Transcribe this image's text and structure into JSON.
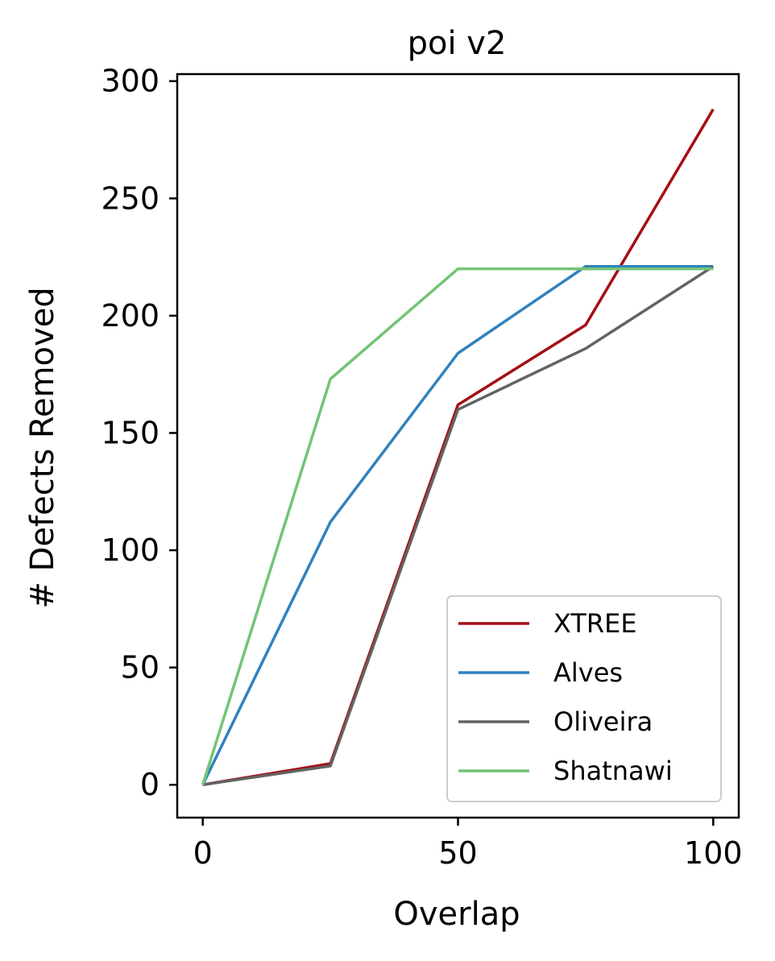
{
  "chart_data": {
    "type": "line",
    "title": "poi v2",
    "xlabel": "Overlap",
    "ylabel": "# Defects Removed",
    "x": [
      0,
      25,
      50,
      75,
      100
    ],
    "xlim": [
      -5,
      105
    ],
    "ylim": [
      -14,
      303
    ],
    "xticks": [
      0,
      50,
      100
    ],
    "yticks": [
      0,
      50,
      100,
      150,
      200,
      250,
      300
    ],
    "xtick_labels": [
      "0",
      "50",
      "100"
    ],
    "ytick_labels": [
      "0",
      "50",
      "100",
      "150",
      "200",
      "250",
      "300"
    ],
    "grid": false,
    "legend_position": "lower-right",
    "series": [
      {
        "name": "XTREE",
        "color": "#a50f15",
        "values": [
          0,
          9,
          162,
          196,
          288
        ]
      },
      {
        "name": "Alves",
        "color": "#3182bd",
        "values": [
          0,
          112,
          184,
          221,
          221
        ]
      },
      {
        "name": "Oliveira",
        "color": "#636363",
        "values": [
          0,
          8,
          160,
          186,
          221
        ]
      },
      {
        "name": "Shatnawi",
        "color": "#74c476",
        "values": [
          0,
          173,
          220,
          220,
          220
        ]
      }
    ]
  }
}
